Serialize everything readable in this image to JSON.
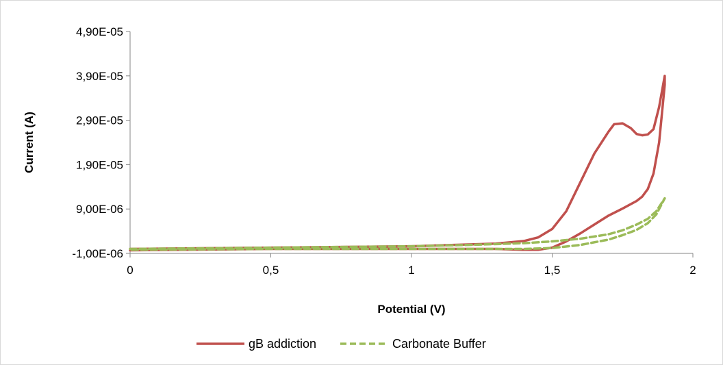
{
  "chart_data": {
    "type": "line",
    "title": "",
    "xlabel": "Potential (V)",
    "ylabel": "Current (A)",
    "xlim": [
      0,
      2
    ],
    "ylim": [
      -1e-06,
      4.9e-05
    ],
    "x_ticks": [
      0,
      0.5,
      1,
      1.5,
      2
    ],
    "x_tick_labels": [
      "0",
      "0,5",
      "1",
      "1,5",
      "2"
    ],
    "y_ticks": [
      -1e-06,
      9e-06,
      1.9e-05,
      2.9e-05,
      3.9e-05,
      4.9e-05
    ],
    "y_tick_labels": [
      "-1,00E-06",
      "9,00E-06",
      "1,90E-05",
      "2,90E-05",
      "3,90E-05",
      "4,90E-05"
    ],
    "grid": false,
    "legend_position": "bottom",
    "series": [
      {
        "name": "gB addiction",
        "color": "#c0504d",
        "style": "solid",
        "x": [
          0,
          0.5,
          1.0,
          1.3,
          1.4,
          1.45,
          1.5,
          1.55,
          1.6,
          1.65,
          1.7,
          1.72,
          1.75,
          1.78,
          1.8,
          1.82,
          1.84,
          1.86,
          1.88,
          1.9,
          1.9,
          1.88,
          1.86,
          1.84,
          1.82,
          1.8,
          1.75,
          1.7,
          1.65,
          1.6,
          1.55,
          1.5,
          1.45,
          1.4,
          1.3,
          1.0,
          0.5,
          0
        ],
        "y": [
          0,
          3e-07,
          6e-07,
          1.2e-06,
          1.8e-06,
          2.6e-06,
          4.5e-06,
          8.5e-06,
          1.5e-05,
          2.15e-05,
          2.64e-05,
          2.81e-05,
          2.83e-05,
          2.72e-05,
          2.59e-05,
          2.56e-05,
          2.58e-05,
          2.7e-05,
          3.2e-05,
          3.9e-05,
          3.7e-05,
          2.4e-05,
          1.7e-05,
          1.35e-05,
          1.18e-05,
          1.08e-05,
          9.1e-06,
          7.5e-06,
          5.5e-06,
          3.5e-06,
          1.7e-06,
          3e-07,
          -2e-07,
          -2e-07,
          0,
          0,
          0,
          -3e-07
        ]
      },
      {
        "name": "Carbonate Buffer",
        "color": "#9bbb59",
        "style": "dashed",
        "x": [
          0,
          0.5,
          1.0,
          1.2,
          1.4,
          1.5,
          1.6,
          1.7,
          1.75,
          1.8,
          1.84,
          1.87,
          1.9,
          1.9,
          1.87,
          1.84,
          1.8,
          1.75,
          1.7,
          1.6,
          1.5,
          1.4,
          1.2,
          1.0,
          0.5,
          0
        ],
        "y": [
          0,
          3e-07,
          6e-07,
          9e-07,
          1.3e-06,
          1.7e-06,
          2.3e-06,
          3.3e-06,
          4.2e-06,
          5.5e-06,
          6.8e-06,
          8.5e-06,
          1.14e-05,
          1.14e-05,
          7.8e-06,
          5.8e-06,
          4.3e-06,
          3.1e-06,
          2.1e-06,
          9e-07,
          2e-07,
          0,
          0,
          0,
          0,
          -2e-07
        ]
      }
    ]
  }
}
